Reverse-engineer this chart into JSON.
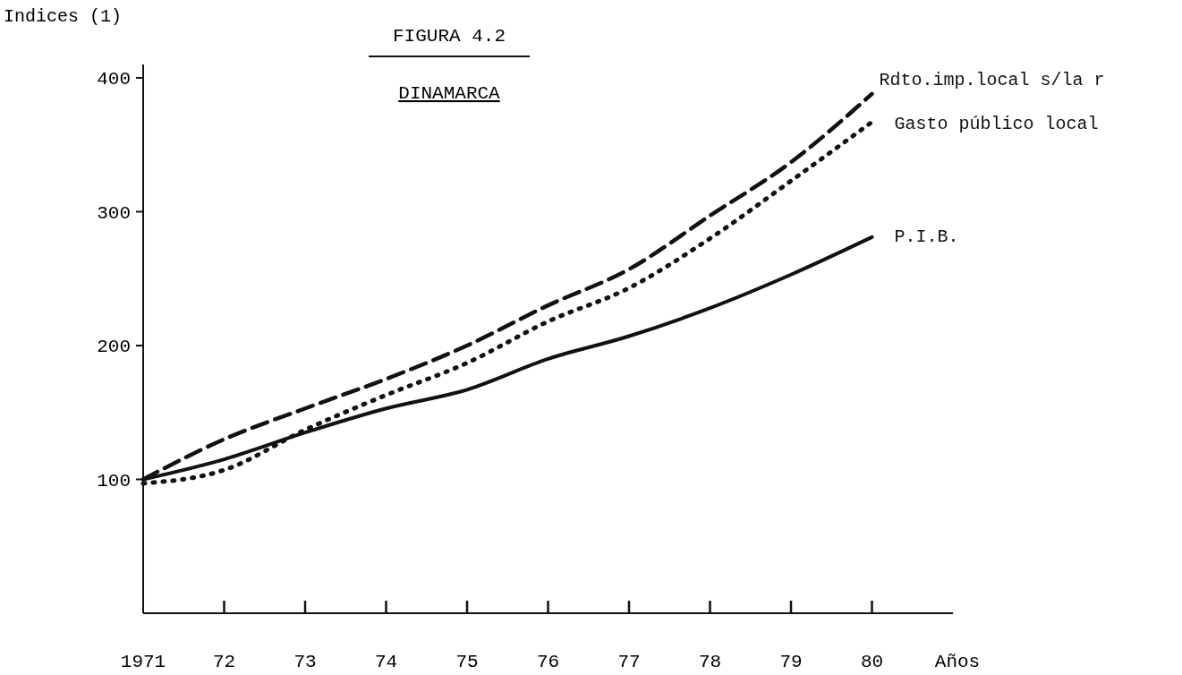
{
  "chart_data": {
    "type": "line",
    "title": "FIGURA 4.2",
    "subtitle": "DINAMARCA",
    "ylabel": "Indices (1)",
    "xlabel": "Años",
    "x": [
      1971,
      1972,
      1973,
      1974,
      1975,
      1976,
      1977,
      1978,
      1979,
      1980
    ],
    "xlim": [
      1971,
      1981
    ],
    "xticks": [
      {
        "value": 1971,
        "label": "1971"
      },
      {
        "value": 1972,
        "label": "72"
      },
      {
        "value": 1973,
        "label": "73"
      },
      {
        "value": 1974,
        "label": "74"
      },
      {
        "value": 1975,
        "label": "75"
      },
      {
        "value": 1976,
        "label": "76"
      },
      {
        "value": 1977,
        "label": "77"
      },
      {
        "value": 1978,
        "label": "78"
      },
      {
        "value": 1979,
        "label": "79"
      },
      {
        "value": 1980,
        "label": "80"
      }
    ],
    "ylim": [
      0,
      410
    ],
    "yticks": [
      100,
      200,
      300,
      400
    ],
    "grid": false,
    "legend": false,
    "series": [
      {
        "name": "Rdto.imp.local s/la r",
        "color": "#111111",
        "line_style": "dashed",
        "values": [
          100,
          130,
          153,
          175,
          200,
          230,
          257,
          297,
          337,
          388
        ]
      },
      {
        "name": "Gasto público local",
        "color": "#111111",
        "line_style": "dotted",
        "values": [
          97,
          107,
          137,
          163,
          187,
          218,
          243,
          280,
          323,
          367
        ]
      },
      {
        "name": "P.I.B.",
        "color": "#111111",
        "line_style": "solid",
        "values": [
          100,
          115,
          135,
          153,
          167,
          190,
          207,
          228,
          253,
          281
        ]
      }
    ]
  }
}
